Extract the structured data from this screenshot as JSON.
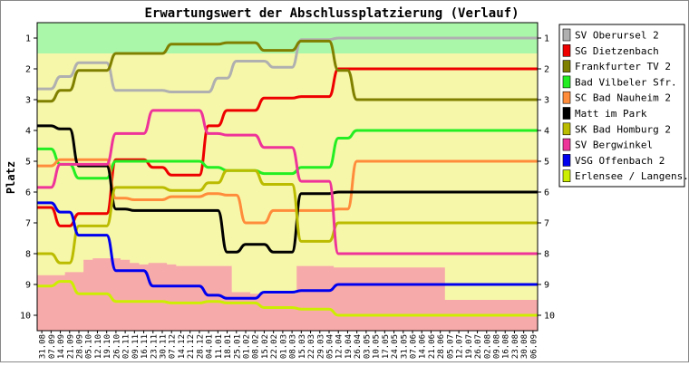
{
  "chart_data": {
    "type": "line",
    "title": "Erwartungswert der Abschlussplatzierung (Verlauf)",
    "ylabel": "Platz",
    "xlabel": "",
    "y_inverted": true,
    "ylim": [
      0.5,
      10.5
    ],
    "y_ticks": [
      1,
      2,
      3,
      4,
      5,
      6,
      7,
      8,
      9,
      10
    ],
    "grid": false,
    "legend_position": "right",
    "categories": [
      "31.08",
      "07.09",
      "14.09",
      "21.09",
      "28.09",
      "05.10",
      "12.10",
      "19.10",
      "26.10",
      "02.11",
      "09.11",
      "16.11",
      "23.11",
      "30.11",
      "07.12",
      "14.12",
      "21.12",
      "28.12",
      "04.01",
      "11.01",
      "18.01",
      "25.01",
      "01.02",
      "08.02",
      "15.02",
      "22.02",
      "01.03",
      "08.03",
      "15.03",
      "22.03",
      "29.03",
      "05.04",
      "12.04",
      "19.04",
      "26.04",
      "03.05",
      "10.05",
      "17.05",
      "24.05",
      "31.05",
      "07.06",
      "14.06",
      "21.06",
      "28.06",
      "05.07",
      "12.07",
      "19.07",
      "26.07",
      "02.08",
      "09.08",
      "16.08",
      "23.08",
      "30.08",
      "06.09"
    ],
    "background_bands": [
      {
        "label": "top",
        "color": "#aaf7aa",
        "upper": [
          1.5,
          1.5,
          1.5,
          1.5,
          1.5,
          1.5,
          1.5,
          1.5,
          1.5,
          1.5,
          1.5,
          1.5,
          1.5,
          1.5,
          1.5,
          1.5,
          1.5,
          1.5,
          1.5,
          1.5,
          1.5,
          1.5,
          1.5,
          1.5,
          1.5,
          1.5,
          1.5,
          1.5,
          1.5,
          1.5,
          1.5,
          1.5,
          1.5,
          1.5,
          1.5,
          1.5,
          1.5,
          1.5,
          1.5,
          1.5,
          1.5,
          1.5,
          1.5,
          1.5,
          1.5,
          1.5,
          1.5,
          1.5,
          1.5,
          1.5,
          1.5,
          1.5,
          1.5,
          1.5
        ]
      },
      {
        "label": "bottom",
        "color": "#f7aaaa",
        "lower": [
          8.7,
          8.7,
          8.7,
          8.6,
          8.6,
          8.2,
          8.15,
          8.15,
          8.15,
          8.2,
          8.3,
          8.35,
          8.3,
          8.3,
          8.35,
          8.4,
          8.4,
          8.4,
          8.4,
          8.4,
          8.4,
          9.25,
          9.25,
          9.3,
          9.3,
          9.3,
          9.3,
          9.3,
          8.4,
          8.4,
          8.4,
          8.4,
          8.45,
          8.45,
          8.45,
          8.45,
          8.45,
          8.45,
          8.45,
          8.45,
          8.45,
          8.45,
          8.45,
          8.45,
          9.5,
          9.5,
          9.5,
          9.5,
          9.5,
          9.5,
          9.5,
          9.5,
          9.5,
          9.5
        ]
      }
    ],
    "middle_band_color": "#f7f7aa",
    "series": [
      {
        "name": "SV Oberursel 2",
        "color": "#b0b0b0",
        "values": [
          2.65,
          2.65,
          2.25,
          2.25,
          1.8,
          1.8,
          1.8,
          1.8,
          2.7,
          2.7,
          2.7,
          2.7,
          2.7,
          2.7,
          2.75,
          2.75,
          2.75,
          2.75,
          2.75,
          2.3,
          2.3,
          1.75,
          1.75,
          1.75,
          1.75,
          1.95,
          1.95,
          1.95,
          1.05,
          1.05,
          1.05,
          1.05,
          1.0,
          1.0,
          1.0,
          1.0,
          1.0,
          1.0,
          1.0,
          1.0,
          1.0,
          1.0,
          1.0,
          1.0,
          1.0,
          1.0,
          1.0,
          1.0,
          1.0,
          1.0,
          1.0,
          1.0,
          1.0,
          1.0
        ]
      },
      {
        "name": "SG Dietzenbach",
        "color": "#ee0000",
        "values": [
          6.5,
          6.5,
          7.1,
          7.1,
          6.7,
          6.7,
          6.7,
          6.7,
          4.95,
          4.95,
          4.95,
          4.95,
          5.2,
          5.2,
          5.45,
          5.45,
          5.45,
          5.45,
          3.85,
          3.85,
          3.35,
          3.35,
          3.35,
          3.35,
          2.95,
          2.95,
          2.95,
          2.95,
          2.9,
          2.9,
          2.9,
          2.9,
          2.0,
          2.0,
          2.0,
          2.0,
          2.0,
          2.0,
          2.0,
          2.0,
          2.0,
          2.0,
          2.0,
          2.0,
          2.0,
          2.0,
          2.0,
          2.0,
          2.0,
          2.0,
          2.0,
          2.0,
          2.0,
          2.0
        ]
      },
      {
        "name": "Frankfurter TV 2",
        "color": "#808000",
        "values": [
          3.05,
          3.05,
          2.7,
          2.7,
          2.05,
          2.05,
          2.05,
          2.05,
          1.5,
          1.5,
          1.5,
          1.5,
          1.5,
          1.5,
          1.2,
          1.2,
          1.2,
          1.2,
          1.2,
          1.2,
          1.15,
          1.15,
          1.15,
          1.15,
          1.4,
          1.4,
          1.4,
          1.4,
          1.1,
          1.1,
          1.1,
          1.1,
          2.05,
          2.05,
          3.0,
          3.0,
          3.0,
          3.0,
          3.0,
          3.0,
          3.0,
          3.0,
          3.0,
          3.0,
          3.0,
          3.0,
          3.0,
          3.0,
          3.0,
          3.0,
          3.0,
          3.0,
          3.0,
          3.0
        ]
      },
      {
        "name": "Bad Vilbeler Sfr.",
        "color": "#22ee22",
        "values": [
          4.6,
          4.6,
          5.1,
          5.1,
          5.55,
          5.55,
          5.55,
          5.55,
          5.0,
          5.0,
          5.0,
          5.0,
          5.0,
          5.0,
          5.0,
          5.0,
          5.0,
          5.0,
          5.2,
          5.2,
          5.3,
          5.3,
          5.3,
          5.3,
          5.4,
          5.4,
          5.4,
          5.4,
          5.2,
          5.2,
          5.2,
          5.2,
          4.25,
          4.25,
          4.0,
          4.0,
          4.0,
          4.0,
          4.0,
          4.0,
          4.0,
          4.0,
          4.0,
          4.0,
          4.0,
          4.0,
          4.0,
          4.0,
          4.0,
          4.0,
          4.0,
          4.0,
          4.0,
          4.0
        ]
      },
      {
        "name": "SC Bad Nauheim 2",
        "color": "#ff8c3a",
        "values": [
          5.15,
          5.15,
          4.95,
          4.95,
          4.95,
          4.95,
          4.95,
          4.95,
          6.2,
          6.2,
          6.25,
          6.25,
          6.25,
          6.25,
          6.15,
          6.15,
          6.15,
          6.15,
          6.05,
          6.05,
          6.1,
          6.1,
          7.0,
          7.0,
          7.0,
          6.6,
          6.6,
          6.6,
          6.6,
          6.6,
          6.6,
          6.6,
          6.55,
          6.55,
          5.0,
          5.0,
          5.0,
          5.0,
          5.0,
          5.0,
          5.0,
          5.0,
          5.0,
          5.0,
          5.0,
          5.0,
          5.0,
          5.0,
          5.0,
          5.0,
          5.0,
          5.0,
          5.0,
          5.0
        ]
      },
      {
        "name": "Matt im Park",
        "color": "#000000",
        "values": [
          3.85,
          3.85,
          3.95,
          3.95,
          5.15,
          5.15,
          5.15,
          5.15,
          6.55,
          6.55,
          6.6,
          6.6,
          6.6,
          6.6,
          6.6,
          6.6,
          6.6,
          6.6,
          6.6,
          6.6,
          7.95,
          7.95,
          7.7,
          7.7,
          7.7,
          7.95,
          7.95,
          7.95,
          6.05,
          6.05,
          6.05,
          6.05,
          6.0,
          6.0,
          6.0,
          6.0,
          6.0,
          6.0,
          6.0,
          6.0,
          6.0,
          6.0,
          6.0,
          6.0,
          6.0,
          6.0,
          6.0,
          6.0,
          6.0,
          6.0,
          6.0,
          6.0,
          6.0,
          6.0
        ]
      },
      {
        "name": "SK Bad Homburg 2",
        "color": "#bbbb00",
        "values": [
          8.0,
          8.0,
          8.3,
          8.3,
          7.1,
          7.1,
          7.1,
          7.1,
          5.85,
          5.85,
          5.85,
          5.85,
          5.85,
          5.85,
          5.95,
          5.95,
          5.95,
          5.95,
          5.7,
          5.7,
          5.3,
          5.3,
          5.3,
          5.3,
          5.75,
          5.75,
          5.75,
          5.75,
          7.6,
          7.6,
          7.6,
          7.6,
          7.0,
          7.0,
          7.0,
          7.0,
          7.0,
          7.0,
          7.0,
          7.0,
          7.0,
          7.0,
          7.0,
          7.0,
          7.0,
          7.0,
          7.0,
          7.0,
          7.0,
          7.0,
          7.0,
          7.0,
          7.0,
          7.0
        ]
      },
      {
        "name": "SV Bergwinkel",
        "color": "#ee3399",
        "values": [
          5.85,
          5.85,
          5.1,
          5.1,
          5.1,
          5.1,
          5.1,
          5.1,
          4.1,
          4.1,
          4.1,
          4.1,
          3.35,
          3.35,
          3.35,
          3.35,
          3.35,
          3.35,
          4.1,
          4.1,
          4.15,
          4.15,
          4.15,
          4.15,
          4.55,
          4.55,
          4.55,
          4.55,
          5.65,
          5.65,
          5.65,
          5.65,
          8.0,
          8.0,
          8.0,
          8.0,
          8.0,
          8.0,
          8.0,
          8.0,
          8.0,
          8.0,
          8.0,
          8.0,
          8.0,
          8.0,
          8.0,
          8.0,
          8.0,
          8.0,
          8.0,
          8.0,
          8.0,
          8.0
        ]
      },
      {
        "name": "VSG Offenbach 2",
        "color": "#0000ee",
        "values": [
          6.35,
          6.35,
          6.65,
          6.65,
          7.4,
          7.4,
          7.4,
          7.4,
          8.55,
          8.55,
          8.55,
          8.55,
          9.05,
          9.05,
          9.05,
          9.05,
          9.05,
          9.05,
          9.35,
          9.35,
          9.45,
          9.45,
          9.45,
          9.45,
          9.25,
          9.25,
          9.25,
          9.25,
          9.2,
          9.2,
          9.2,
          9.2,
          9.0,
          9.0,
          9.0,
          9.0,
          9.0,
          9.0,
          9.0,
          9.0,
          9.0,
          9.0,
          9.0,
          9.0,
          9.0,
          9.0,
          9.0,
          9.0,
          9.0,
          9.0,
          9.0,
          9.0,
          9.0,
          9.0
        ]
      },
      {
        "name": "Erlensee / Langens.",
        "color": "#ccee00",
        "values": [
          9.05,
          9.05,
          8.9,
          8.9,
          9.3,
          9.3,
          9.3,
          9.3,
          9.55,
          9.55,
          9.55,
          9.55,
          9.55,
          9.55,
          9.6,
          9.6,
          9.6,
          9.6,
          9.55,
          9.55,
          9.6,
          9.6,
          9.6,
          9.6,
          9.75,
          9.75,
          9.75,
          9.75,
          9.8,
          9.8,
          9.8,
          9.8,
          10.0,
          10.0,
          10.0,
          10.0,
          10.0,
          10.0,
          10.0,
          10.0,
          10.0,
          10.0,
          10.0,
          10.0,
          10.0,
          10.0,
          10.0,
          10.0,
          10.0,
          10.0,
          10.0,
          10.0,
          10.0,
          10.0
        ]
      }
    ]
  }
}
